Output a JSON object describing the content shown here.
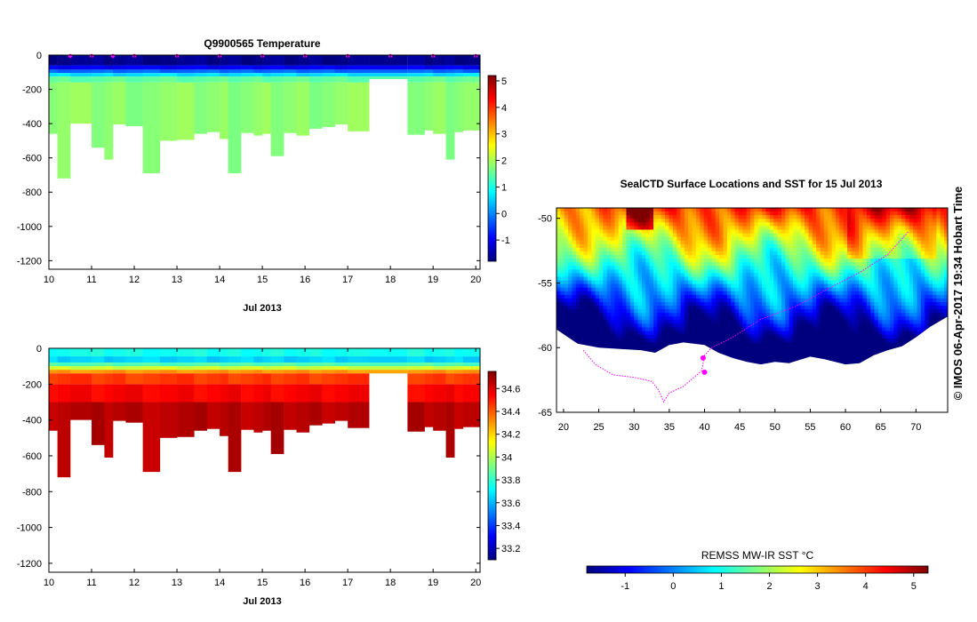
{
  "colors": {
    "jet": [
      "#00007f",
      "#0000ff",
      "#007fff",
      "#00ffff",
      "#7fff7f",
      "#ffff00",
      "#ff7f00",
      "#ff0000",
      "#7f0000"
    ],
    "profile_marker": "#ff00ff",
    "ice_track": "#ff00ff",
    "no_data": "#ffffff"
  },
  "chart_data": [
    {
      "type": "heatmap",
      "title": "Q9900565  Temperature",
      "xlabel": "Jul 2013",
      "ylabel": "",
      "xlim": [
        10,
        20.1
      ],
      "ylim": [
        -1250,
        0
      ],
      "xticks": [
        10,
        11,
        12,
        13,
        14,
        15,
        16,
        17,
        18,
        19,
        20
      ],
      "yticks": [
        0,
        -200,
        -400,
        -600,
        -800,
        -1000,
        -1200
      ],
      "colorbar": {
        "min": -1.8,
        "max": 5.2,
        "ticks": [
          -1,
          0,
          1,
          2,
          3,
          4,
          5
        ]
      },
      "profile_times": [
        10.5,
        11,
        11.5,
        12,
        13,
        14,
        15,
        16,
        17,
        18,
        19,
        20
      ],
      "profiles": [
        {
          "x0": 10.0,
          "x1": 10.2,
          "max_depth": 460
        },
        {
          "x0": 10.2,
          "x1": 10.5,
          "max_depth": 720
        },
        {
          "x0": 10.5,
          "x1": 11.0,
          "max_depth": 400
        },
        {
          "x0": 11.0,
          "x1": 11.3,
          "max_depth": 540
        },
        {
          "x0": 11.3,
          "x1": 11.5,
          "max_depth": 610
        },
        {
          "x0": 11.5,
          "x1": 11.8,
          "max_depth": 405
        },
        {
          "x0": 11.8,
          "x1": 12.2,
          "max_depth": 415
        },
        {
          "x0": 12.2,
          "x1": 12.6,
          "max_depth": 690
        },
        {
          "x0": 12.6,
          "x1": 13.0,
          "max_depth": 500
        },
        {
          "x0": 13.0,
          "x1": 13.4,
          "max_depth": 495
        },
        {
          "x0": 13.4,
          "x1": 13.7,
          "max_depth": 460
        },
        {
          "x0": 13.7,
          "x1": 14.0,
          "max_depth": 450
        },
        {
          "x0": 14.0,
          "x1": 14.2,
          "max_depth": 490
        },
        {
          "x0": 14.2,
          "x1": 14.5,
          "max_depth": 690
        },
        {
          "x0": 14.5,
          "x1": 14.8,
          "max_depth": 455
        },
        {
          "x0": 14.8,
          "x1": 15.0,
          "max_depth": 470
        },
        {
          "x0": 15.0,
          "x1": 15.2,
          "max_depth": 460
        },
        {
          "x0": 15.2,
          "x1": 15.5,
          "max_depth": 590
        },
        {
          "x0": 15.5,
          "x1": 15.8,
          "max_depth": 455
        },
        {
          "x0": 15.8,
          "x1": 16.1,
          "max_depth": 470
        },
        {
          "x0": 16.1,
          "x1": 16.4,
          "max_depth": 430
        },
        {
          "x0": 16.4,
          "x1": 16.7,
          "max_depth": 420
        },
        {
          "x0": 16.7,
          "x1": 17.0,
          "max_depth": 405
        },
        {
          "x0": 17.0,
          "x1": 17.5,
          "max_depth": 445
        },
        {
          "x0": 18.4,
          "x1": 18.8,
          "max_depth": 465
        },
        {
          "x0": 18.8,
          "x1": 19.0,
          "max_depth": 440
        },
        {
          "x0": 19.0,
          "x1": 19.3,
          "max_depth": 460
        },
        {
          "x0": 19.3,
          "x1": 19.5,
          "max_depth": 610
        },
        {
          "x0": 19.5,
          "x1": 19.7,
          "max_depth": 450
        },
        {
          "x0": 19.7,
          "x1": 20.1,
          "max_depth": 440
        }
      ],
      "gap": {
        "x0": 17.5,
        "x1": 18.4,
        "max_depth": 140
      },
      "layers": [
        {
          "top": 0,
          "bottom": 60,
          "value": -1.7
        },
        {
          "top": 60,
          "bottom": 85,
          "value": -1.0
        },
        {
          "top": 85,
          "bottom": 105,
          "value": -0.2
        },
        {
          "top": 105,
          "bottom": 125,
          "value": 0.6
        },
        {
          "top": 125,
          "bottom": 160,
          "value": 1.5
        },
        {
          "top": 160,
          "bottom": 1300,
          "value": 1.8
        }
      ]
    },
    {
      "type": "heatmap",
      "title": "",
      "xlabel": "Jul 2013",
      "ylabel": "",
      "xlim": [
        10,
        20.1
      ],
      "ylim": [
        -1250,
        0
      ],
      "xticks": [
        10,
        11,
        12,
        13,
        14,
        15,
        16,
        17,
        18,
        19,
        20
      ],
      "yticks": [
        0,
        -200,
        -400,
        -600,
        -800,
        -1000,
        -1200
      ],
      "colorbar": {
        "min": 33.1,
        "max": 34.75,
        "ticks": [
          33.2,
          33.4,
          33.6,
          33.8,
          34,
          34.2,
          34.4,
          34.6
        ]
      },
      "layers": [
        {
          "top": 0,
          "bottom": 45,
          "value": 33.75
        },
        {
          "top": 45,
          "bottom": 80,
          "value": 33.65
        },
        {
          "top": 80,
          "bottom": 100,
          "value": 33.85
        },
        {
          "top": 100,
          "bottom": 120,
          "value": 34.05
        },
        {
          "top": 120,
          "bottom": 140,
          "value": 34.3
        },
        {
          "top": 140,
          "bottom": 200,
          "value": 34.45
        },
        {
          "top": 200,
          "bottom": 300,
          "value": 34.55
        },
        {
          "top": 300,
          "bottom": 1300,
          "value": 34.66
        }
      ]
    },
    {
      "type": "heatmap",
      "title": "SealCTD Surface Locations and SST for 15 Jul 2013",
      "xlabel": "",
      "ylabel": "",
      "xlim": [
        19,
        74.5
      ],
      "ylim": [
        -65,
        -49.2
      ],
      "xticks": [
        20,
        25,
        30,
        35,
        40,
        45,
        50,
        55,
        60,
        65,
        70
      ],
      "yticks": [
        -50,
        -55,
        -60,
        -65
      ],
      "colorbar": {
        "label": "REMSS MW-IR SST °C",
        "min": -1.8,
        "max": 5.3,
        "ticks": [
          -1,
          0,
          1,
          2,
          3,
          4,
          5
        ]
      },
      "ice_edge": [
        [
          19,
          -58.6
        ],
        [
          22,
          -59.7
        ],
        [
          25,
          -60
        ],
        [
          28,
          -60.1
        ],
        [
          31,
          -60.2
        ],
        [
          33,
          -60.4
        ],
        [
          35,
          -59.8
        ],
        [
          37,
          -59.6
        ],
        [
          40,
          -59.8
        ],
        [
          42,
          -60.4
        ],
        [
          44,
          -60.8
        ],
        [
          46,
          -61.1
        ],
        [
          48,
          -61.3
        ],
        [
          50,
          -61.1
        ],
        [
          52,
          -61.2
        ],
        [
          55,
          -60.7
        ],
        [
          57,
          -60.9
        ],
        [
          60,
          -61.3
        ],
        [
          62,
          -61.2
        ],
        [
          64,
          -60.6
        ],
        [
          66,
          -60.2
        ],
        [
          68,
          -59.9
        ],
        [
          70,
          -59.2
        ],
        [
          72,
          -58.4
        ],
        [
          74.5,
          -57.6
        ]
      ],
      "track": [
        [
          22.8,
          -60.2
        ],
        [
          24.5,
          -61.3
        ],
        [
          27,
          -62.1
        ],
        [
          30,
          -62.3
        ],
        [
          32.5,
          -62.6
        ],
        [
          33.5,
          -63.3
        ],
        [
          34.2,
          -64.2
        ],
        [
          35,
          -63.5
        ],
        [
          37,
          -63
        ],
        [
          38.5,
          -62.3
        ],
        [
          39.6,
          -61.8
        ],
        [
          40,
          -60.6
        ],
        [
          41,
          -60
        ],
        [
          44,
          -59.2
        ],
        [
          48,
          -57.8
        ],
        [
          53,
          -56.8
        ],
        [
          57,
          -55.6
        ],
        [
          62,
          -54.2
        ],
        [
          66,
          -52.8
        ],
        [
          69,
          -51
        ]
      ],
      "track_markers": [
        [
          39.8,
          -60.8
        ],
        [
          40,
          -61.9
        ]
      ]
    }
  ],
  "watermark": "©  IMOS 06-Apr-2017 19:34 Hobart Time"
}
